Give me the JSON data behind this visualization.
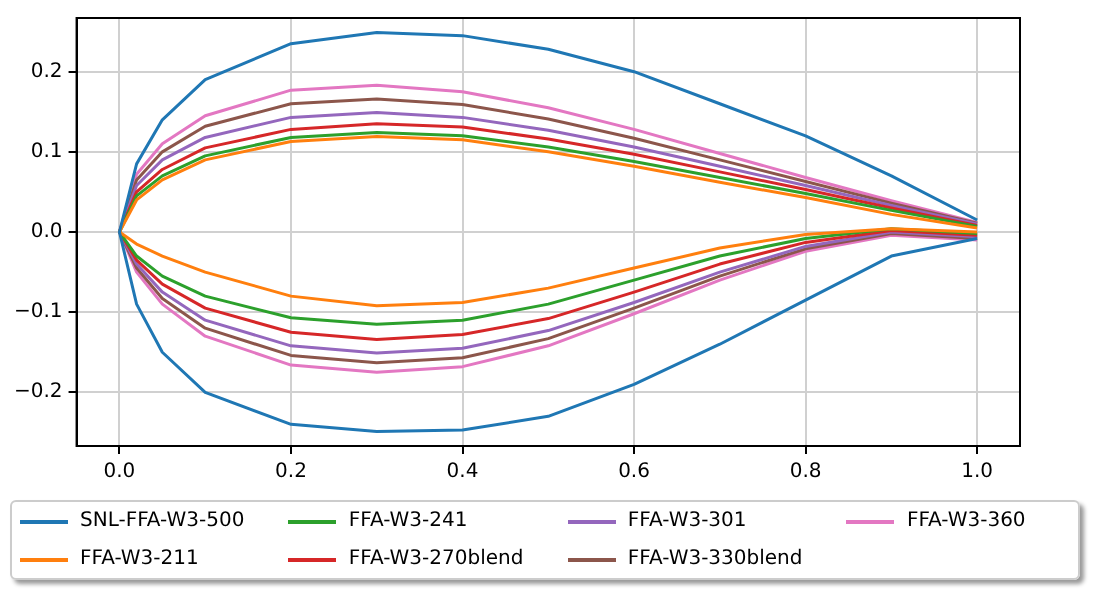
{
  "chart_data": {
    "type": "line",
    "x": [
      1,
      0.9,
      0.8,
      0.7,
      0.6,
      0.5,
      0.4,
      0.3,
      0.2,
      0.1,
      0.05,
      0.02,
      0,
      0.02,
      0.05,
      0.1,
      0.2,
      0.3,
      0.4,
      0.5,
      0.6,
      0.7,
      0.8,
      0.9,
      1
    ],
    "series": [
      {
        "name": "SNL-FFA-W3-500",
        "color": "#1f77b4",
        "values": [
          0.015,
          0.07,
          0.12,
          0.16,
          0.2,
          0.228,
          0.245,
          0.249,
          0.235,
          0.19,
          0.14,
          0.085,
          0,
          -0.09,
          -0.15,
          -0.2,
          -0.24,
          -0.249,
          -0.247,
          -0.23,
          -0.19,
          -0.14,
          -0.085,
          -0.03,
          -0.008
        ]
      },
      {
        "name": "FFA-W3-211",
        "color": "#ff7f0e",
        "values": [
          0.005,
          0.022,
          0.043,
          0.062,
          0.082,
          0.1,
          0.115,
          0.119,
          0.113,
          0.09,
          0.065,
          0.04,
          0,
          -0.015,
          -0.03,
          -0.05,
          -0.08,
          -0.092,
          -0.088,
          -0.07,
          -0.045,
          -0.02,
          -0.003,
          0.004,
          0
        ]
      },
      {
        "name": "FFA-W3-241",
        "color": "#2ca02c",
        "values": [
          0.007,
          0.027,
          0.048,
          0.068,
          0.088,
          0.106,
          0.12,
          0.124,
          0.118,
          0.095,
          0.07,
          0.045,
          0,
          -0.03,
          -0.055,
          -0.08,
          -0.107,
          -0.115,
          -0.11,
          -0.09,
          -0.06,
          -0.03,
          -0.008,
          0.004,
          -0.002
        ]
      },
      {
        "name": "FFA-W3-270blend",
        "color": "#d62728",
        "values": [
          0.008,
          0.03,
          0.053,
          0.075,
          0.097,
          0.116,
          0.131,
          0.135,
          0.128,
          0.105,
          0.078,
          0.05,
          0,
          -0.035,
          -0.065,
          -0.095,
          -0.125,
          -0.134,
          -0.128,
          -0.108,
          -0.075,
          -0.04,
          -0.013,
          0.002,
          -0.004
        ]
      },
      {
        "name": "FFA-W3-301",
        "color": "#9467bd",
        "values": [
          0.01,
          0.033,
          0.058,
          0.082,
          0.106,
          0.127,
          0.143,
          0.149,
          0.143,
          0.118,
          0.09,
          0.058,
          0,
          -0.04,
          -0.075,
          -0.11,
          -0.142,
          -0.151,
          -0.145,
          -0.123,
          -0.088,
          -0.05,
          -0.018,
          0,
          -0.006
        ]
      },
      {
        "name": "FFA-W3-330blend",
        "color": "#8c564b",
        "values": [
          0.011,
          0.036,
          0.063,
          0.09,
          0.117,
          0.141,
          0.159,
          0.166,
          0.16,
          0.132,
          0.1,
          0.065,
          0,
          -0.045,
          -0.083,
          -0.12,
          -0.154,
          -0.163,
          -0.157,
          -0.133,
          -0.095,
          -0.055,
          -0.021,
          -0.002,
          -0.008
        ]
      },
      {
        "name": "FFA-W3-360",
        "color": "#e377c2",
        "values": [
          0.012,
          0.039,
          0.068,
          0.098,
          0.128,
          0.155,
          0.175,
          0.183,
          0.177,
          0.145,
          0.11,
          0.072,
          0,
          -0.05,
          -0.09,
          -0.13,
          -0.166,
          -0.175,
          -0.168,
          -0.142,
          -0.102,
          -0.06,
          -0.024,
          -0.004,
          -0.01
        ]
      }
    ],
    "xlim": [
      -0.05,
      1.05
    ],
    "xticks": [
      {
        "value": 0,
        "label": "0.0"
      },
      {
        "value": 0.2,
        "label": "0.2"
      },
      {
        "value": 0.4,
        "label": "0.4"
      },
      {
        "value": 0.6,
        "label": "0.6"
      },
      {
        "value": 0.8,
        "label": "0.8"
      },
      {
        "value": 1,
        "label": "1.0"
      }
    ],
    "ylim": [
      -0.267,
      0.267
    ],
    "yticks": [
      {
        "value": -0.2,
        "label": "−0.2"
      },
      {
        "value": -0.1,
        "label": "−0.1"
      },
      {
        "value": 0,
        "label": "0.0"
      },
      {
        "value": 0.1,
        "label": "0.1"
      },
      {
        "value": 0.2,
        "label": "0.2"
      }
    ],
    "grid": true,
    "legend": "bottom",
    "marker": "none",
    "line_style": "solid"
  }
}
